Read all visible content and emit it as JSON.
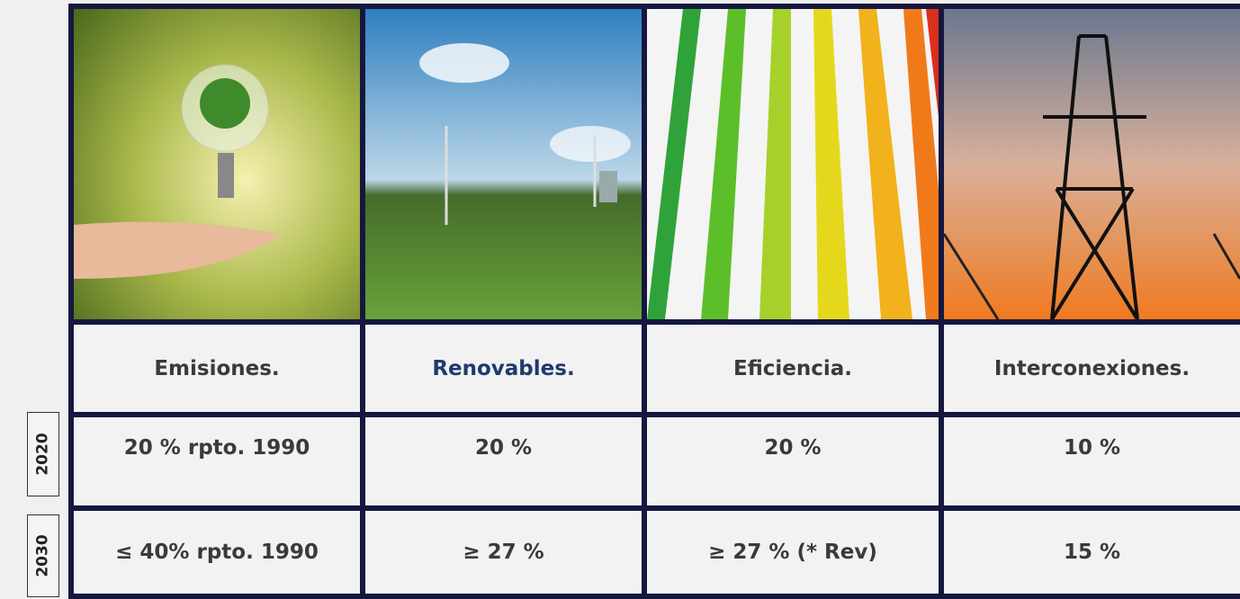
{
  "table": {
    "columns": [
      "Emisiones.",
      "Renovables.",
      "Eficiencia.",
      "Interconexiones."
    ],
    "rows": [
      {
        "label": "2020",
        "cells": [
          "20 % rpto. 1990",
          "20 %",
          "20 %",
          "10 %"
        ]
      },
      {
        "label": "2030",
        "cells": [
          "≤ 40% rpto. 1990",
          "≥ 27 %",
          "≥ 27 % (* Rev)",
          "15 %"
        ]
      }
    ]
  }
}
